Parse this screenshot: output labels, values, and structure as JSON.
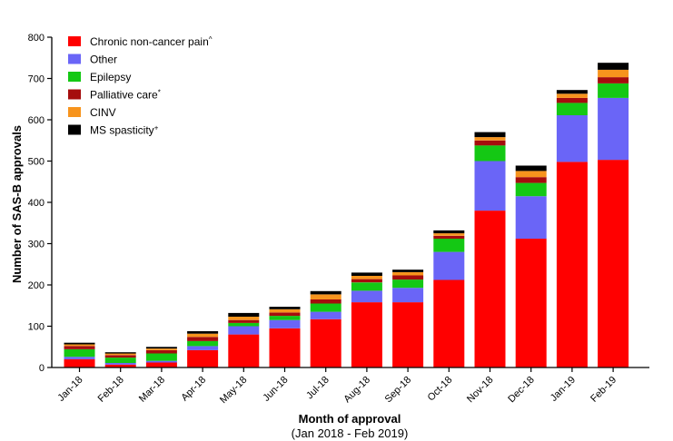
{
  "chart_data": {
    "type": "bar",
    "stacked": true,
    "xlabel": "Month of approval",
    "xlabel_sub": "(Jan 2018 - Feb 2019)",
    "ylabel": "Number of SAS-B approvals",
    "ylim": [
      0,
      800
    ],
    "yticks": [
      "0",
      "100",
      "200",
      "300",
      "400",
      "500",
      "600",
      "700",
      "800"
    ],
    "grid": false,
    "legend_position": "top-left",
    "categories": [
      "Jan-18",
      "Feb-18",
      "Mar-18",
      "Apr-18",
      "May-18",
      "Jun-18",
      "Jul-18",
      "Aug-18",
      "Sep-18",
      "Oct-18",
      "Nov-18",
      "Dec-18",
      "Jan-19",
      "Feb-19"
    ],
    "series": [
      {
        "name": "Chronic non-cancer pain",
        "sup": "^",
        "color": "#ff0000",
        "values": [
          20,
          7,
          12,
          42,
          80,
          95,
          117,
          158,
          158,
          212,
          380,
          312,
          498,
          503
        ]
      },
      {
        "name": "Other",
        "sup": "",
        "color": "#6a65f7",
        "values": [
          6,
          4,
          4,
          10,
          20,
          20,
          18,
          28,
          35,
          68,
          120,
          103,
          113,
          150
        ]
      },
      {
        "name": "Epilepsy",
        "sup": "",
        "color": "#14c814",
        "values": [
          18,
          13,
          18,
          12,
          8,
          10,
          20,
          20,
          20,
          32,
          38,
          32,
          30,
          35
        ]
      },
      {
        "name": "Palliative care",
        "sup": "*",
        "color": "#a50d0d",
        "values": [
          8,
          6,
          8,
          10,
          7,
          8,
          10,
          8,
          10,
          7,
          12,
          14,
          12,
          15
        ]
      },
      {
        "name": "CINV",
        "sup": "",
        "color": "#f7941d",
        "values": [
          4,
          4,
          4,
          8,
          8,
          8,
          12,
          8,
          8,
          6,
          8,
          15,
          10,
          18
        ]
      },
      {
        "name": "MS spasticity",
        "sup": "+",
        "color": "#000000",
        "values": [
          4,
          3,
          4,
          6,
          9,
          6,
          8,
          8,
          6,
          7,
          12,
          13,
          9,
          17
        ]
      }
    ]
  }
}
